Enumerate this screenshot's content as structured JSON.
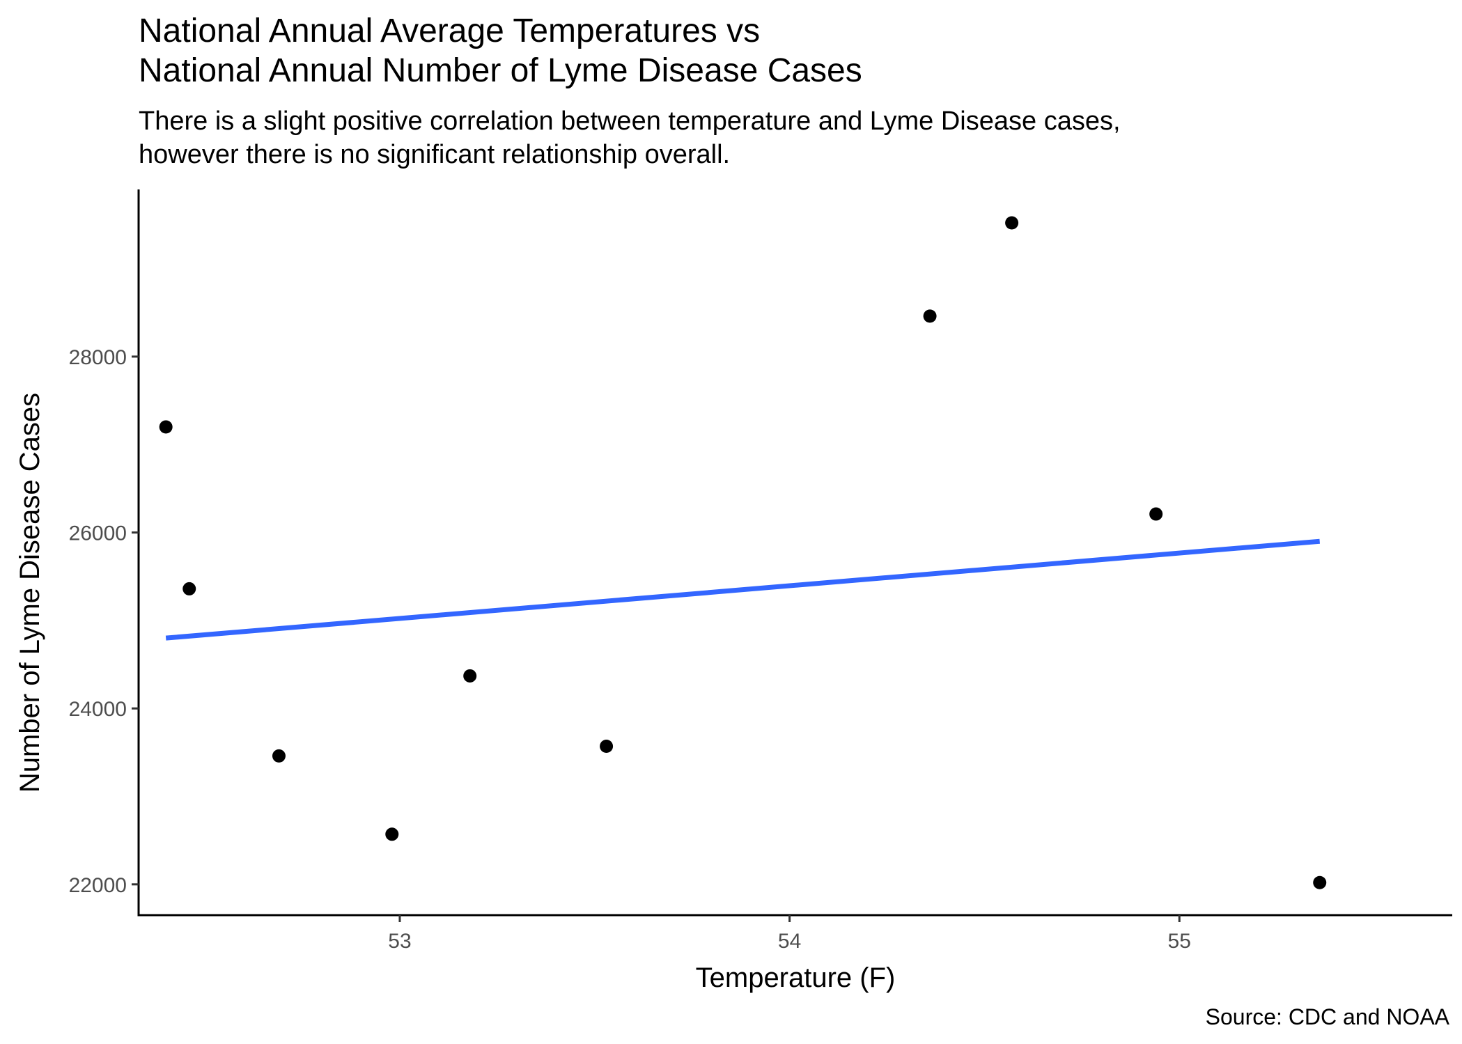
{
  "chart_data": {
    "type": "scatter",
    "title": [
      "National Annual Average Temperatures vs",
      "National Annual Number of Lyme Disease Cases"
    ],
    "subtitle": [
      "There is a slight positive correlation between temperature and Lyme Disease cases,",
      "however there is no significant relationship overall."
    ],
    "caption": "Source: CDC and NOAA",
    "xlabel": "Temperature (F)",
    "ylabel": "Number of Lyme Disease Cases",
    "xlim": [
      52.33,
      55.7
    ],
    "ylim": [
      21650,
      29900
    ],
    "x_ticks": [
      53,
      54,
      55
    ],
    "x_tick_labels": [
      "53",
      "54",
      "55"
    ],
    "y_ticks": [
      22000,
      24000,
      26000,
      28000
    ],
    "y_tick_labels": [
      "22000",
      "24000",
      "26000",
      "28000"
    ],
    "grid": false,
    "legend": "none",
    "series": [
      {
        "points": [
          {
            "x": 52.4,
            "y": 27200
          },
          {
            "x": 52.46,
            "y": 25360
          },
          {
            "x": 52.69,
            "y": 23460
          },
          {
            "x": 52.98,
            "y": 22570
          },
          {
            "x": 53.18,
            "y": 24370
          },
          {
            "x": 53.53,
            "y": 23570
          },
          {
            "x": 54.36,
            "y": 28460
          },
          {
            "x": 54.57,
            "y": 29520
          },
          {
            "x": 54.94,
            "y": 26210
          },
          {
            "x": 55.36,
            "y": 22020
          }
        ],
        "color": "#000000"
      }
    ],
    "trend_line": {
      "color": "#3366FF",
      "points": [
        {
          "x": 52.4,
          "y": 24800
        },
        {
          "x": 55.36,
          "y": 25900
        }
      ]
    }
  }
}
